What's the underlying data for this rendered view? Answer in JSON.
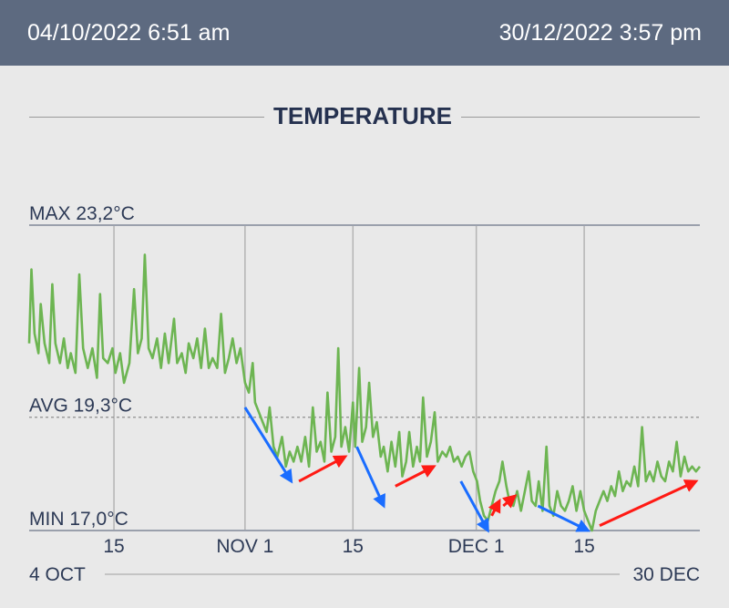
{
  "header": {
    "start": "04/10/2022 6:51 am",
    "end": "30/12/2022 3:57 pm"
  },
  "colors": {
    "header_bg": "#5d6a80",
    "line": "#6db552",
    "down_arrow": "#1a6dff",
    "up_arrow": "#ff1a14",
    "text": "#2d3a56"
  },
  "chart_data": {
    "type": "line",
    "title": "TEMPERATURE",
    "x_range_days": [
      0,
      87
    ],
    "ylim": [
      17.0,
      23.2
    ],
    "reference_lines": [
      {
        "label": "MAX 23,2°C",
        "value": 23.2,
        "style": "solid"
      },
      {
        "label": "AVG 19,3°C",
        "value": 19.3,
        "style": "dashed"
      },
      {
        "label": "MIN 17,0°C",
        "value": 17.0,
        "style": "solid"
      }
    ],
    "x_ticks": [
      {
        "day": 11,
        "label": "15"
      },
      {
        "day": 28,
        "label": "NOV 1"
      },
      {
        "day": 42,
        "label": "15"
      },
      {
        "day": 58,
        "label": "DEC 1"
      },
      {
        "day": 72,
        "label": "15"
      }
    ],
    "x_range_labels": {
      "start": "4 OCT",
      "end": "30 DEC"
    },
    "series": [
      {
        "points": [
          [
            0.0,
            20.8
          ],
          [
            0.3,
            22.3
          ],
          [
            0.7,
            21.0
          ],
          [
            1.2,
            20.6
          ],
          [
            1.5,
            21.6
          ],
          [
            2.0,
            20.8
          ],
          [
            2.6,
            20.4
          ],
          [
            3.0,
            22.0
          ],
          [
            3.4,
            20.8
          ],
          [
            4.0,
            20.4
          ],
          [
            4.5,
            20.9
          ],
          [
            5.0,
            20.3
          ],
          [
            5.4,
            20.6
          ],
          [
            6.0,
            20.2
          ],
          [
            6.5,
            22.2
          ],
          [
            7.0,
            20.7
          ],
          [
            7.6,
            20.3
          ],
          [
            8.2,
            20.7
          ],
          [
            8.8,
            20.1
          ],
          [
            9.2,
            21.8
          ],
          [
            9.6,
            20.5
          ],
          [
            10.2,
            20.4
          ],
          [
            10.8,
            20.7
          ],
          [
            11.2,
            20.2
          ],
          [
            11.8,
            20.6
          ],
          [
            12.3,
            20.0
          ],
          [
            13.0,
            20.4
          ],
          [
            13.6,
            21.9
          ],
          [
            14.1,
            20.6
          ],
          [
            14.6,
            20.9
          ],
          [
            15.0,
            22.6
          ],
          [
            15.5,
            20.7
          ],
          [
            16.0,
            20.5
          ],
          [
            16.6,
            20.9
          ],
          [
            17.1,
            20.3
          ],
          [
            17.6,
            21.0
          ],
          [
            18.1,
            20.4
          ],
          [
            18.8,
            21.3
          ],
          [
            19.2,
            20.4
          ],
          [
            19.8,
            20.6
          ],
          [
            20.3,
            20.2
          ],
          [
            20.7,
            20.8
          ],
          [
            21.3,
            20.5
          ],
          [
            21.8,
            20.9
          ],
          [
            22.3,
            20.3
          ],
          [
            22.8,
            21.1
          ],
          [
            23.3,
            20.3
          ],
          [
            23.8,
            20.5
          ],
          [
            24.4,
            20.3
          ],
          [
            24.9,
            21.4
          ],
          [
            25.4,
            20.2
          ],
          [
            25.9,
            20.5
          ],
          [
            26.4,
            20.9
          ],
          [
            26.9,
            20.4
          ],
          [
            27.4,
            20.7
          ],
          [
            28.0,
            20.0
          ],
          [
            28.5,
            19.8
          ],
          [
            29.0,
            20.4
          ],
          [
            29.3,
            19.6
          ],
          [
            29.8,
            19.4
          ],
          [
            30.3,
            19.2
          ],
          [
            30.8,
            19.0
          ],
          [
            31.2,
            19.5
          ],
          [
            31.7,
            18.7
          ],
          [
            32.2,
            18.5
          ],
          [
            32.8,
            18.9
          ],
          [
            33.3,
            18.3
          ],
          [
            33.8,
            18.6
          ],
          [
            34.3,
            18.4
          ],
          [
            34.8,
            18.7
          ],
          [
            35.3,
            18.4
          ],
          [
            35.8,
            18.9
          ],
          [
            36.3,
            18.3
          ],
          [
            36.8,
            19.5
          ],
          [
            37.3,
            18.6
          ],
          [
            37.8,
            18.8
          ],
          [
            38.3,
            18.4
          ],
          [
            38.7,
            19.8
          ],
          [
            39.2,
            18.6
          ],
          [
            39.7,
            18.9
          ],
          [
            40.1,
            20.7
          ],
          [
            40.5,
            18.7
          ],
          [
            41.0,
            19.1
          ],
          [
            41.5,
            18.6
          ],
          [
            42.0,
            19.6
          ],
          [
            42.3,
            18.7
          ],
          [
            42.8,
            20.3
          ],
          [
            43.2,
            18.8
          ],
          [
            43.7,
            19.1
          ],
          [
            44.1,
            20.0
          ],
          [
            44.6,
            18.9
          ],
          [
            45.1,
            19.2
          ],
          [
            45.6,
            18.5
          ],
          [
            46.0,
            18.7
          ],
          [
            46.5,
            18.2
          ],
          [
            47.0,
            18.8
          ],
          [
            47.5,
            18.3
          ],
          [
            48.0,
            19.0
          ],
          [
            48.4,
            18.1
          ],
          [
            48.9,
            18.4
          ],
          [
            49.3,
            19.0
          ],
          [
            49.8,
            18.3
          ],
          [
            50.3,
            18.7
          ],
          [
            50.7,
            18.4
          ],
          [
            51.1,
            19.7
          ],
          [
            51.6,
            18.5
          ],
          [
            52.1,
            18.8
          ],
          [
            52.6,
            19.4
          ],
          [
            53.0,
            18.4
          ],
          [
            53.6,
            18.6
          ],
          [
            54.1,
            18.5
          ],
          [
            54.6,
            18.7
          ],
          [
            55.1,
            18.4
          ],
          [
            55.6,
            18.5
          ],
          [
            56.1,
            18.3
          ],
          [
            56.6,
            18.5
          ],
          [
            57.1,
            18.6
          ],
          [
            57.6,
            18.2
          ],
          [
            58.1,
            18.0
          ],
          [
            58.5,
            17.6
          ],
          [
            59.0,
            17.3
          ],
          [
            59.5,
            17.2
          ],
          [
            60.0,
            17.5
          ],
          [
            60.5,
            17.8
          ],
          [
            61.0,
            18.0
          ],
          [
            61.4,
            18.4
          ],
          [
            61.9,
            17.9
          ],
          [
            62.3,
            17.6
          ],
          [
            62.8,
            17.5
          ],
          [
            63.3,
            17.8
          ],
          [
            63.8,
            17.4
          ],
          [
            64.3,
            17.8
          ],
          [
            64.8,
            18.2
          ],
          [
            65.2,
            17.6
          ],
          [
            65.7,
            17.5
          ],
          [
            66.1,
            18.0
          ],
          [
            66.6,
            17.4
          ],
          [
            67.1,
            18.7
          ],
          [
            67.5,
            17.5
          ],
          [
            68.0,
            17.3
          ],
          [
            68.5,
            17.8
          ],
          [
            69.0,
            17.5
          ],
          [
            69.5,
            17.4
          ],
          [
            70.0,
            17.6
          ],
          [
            70.5,
            17.9
          ],
          [
            71.0,
            17.4
          ],
          [
            71.5,
            17.8
          ],
          [
            72.0,
            17.4
          ],
          [
            72.5,
            17.2
          ],
          [
            73.0,
            17.0
          ],
          [
            73.5,
            17.4
          ],
          [
            74.0,
            17.6
          ],
          [
            74.5,
            17.8
          ],
          [
            75.0,
            17.6
          ],
          [
            75.5,
            17.9
          ],
          [
            76.0,
            17.7
          ],
          [
            76.5,
            18.2
          ],
          [
            77.0,
            17.8
          ],
          [
            77.5,
            18.0
          ],
          [
            78.0,
            17.9
          ],
          [
            78.5,
            18.3
          ],
          [
            79.0,
            17.9
          ],
          [
            79.5,
            19.1
          ],
          [
            80.0,
            18.0
          ],
          [
            80.5,
            18.2
          ],
          [
            81.0,
            18.0
          ],
          [
            81.5,
            18.4
          ],
          [
            82.0,
            18.1
          ],
          [
            82.5,
            18.0
          ],
          [
            83.0,
            18.4
          ],
          [
            83.5,
            18.2
          ],
          [
            84.0,
            18.8
          ],
          [
            84.5,
            18.1
          ],
          [
            85.0,
            18.5
          ],
          [
            85.5,
            18.2
          ],
          [
            86.0,
            18.3
          ],
          [
            86.5,
            18.2
          ],
          [
            87.0,
            18.3
          ]
        ]
      }
    ],
    "annotations": {
      "down_arrows": [
        {
          "from": [
            28.0,
            19.5
          ],
          "to": [
            34.0,
            18.0
          ]
        },
        {
          "from": [
            42.5,
            18.7
          ],
          "to": [
            46.0,
            17.5
          ]
        },
        {
          "from": [
            56.0,
            18.0
          ],
          "to": [
            59.5,
            17.0
          ]
        },
        {
          "from": [
            66.0,
            17.5
          ],
          "to": [
            72.5,
            17.0
          ]
        }
      ],
      "up_arrows": [
        {
          "from": [
            35.0,
            18.0
          ],
          "to": [
            41.0,
            18.5
          ]
        },
        {
          "from": [
            47.5,
            17.9
          ],
          "to": [
            52.5,
            18.3
          ]
        },
        {
          "from": [
            60.0,
            17.3
          ],
          "to": [
            61.0,
            17.6
          ]
        },
        {
          "from": [
            61.5,
            17.5
          ],
          "to": [
            63.0,
            17.7
          ]
        },
        {
          "from": [
            74.0,
            17.1
          ],
          "to": [
            86.5,
            18.0
          ]
        }
      ]
    }
  }
}
